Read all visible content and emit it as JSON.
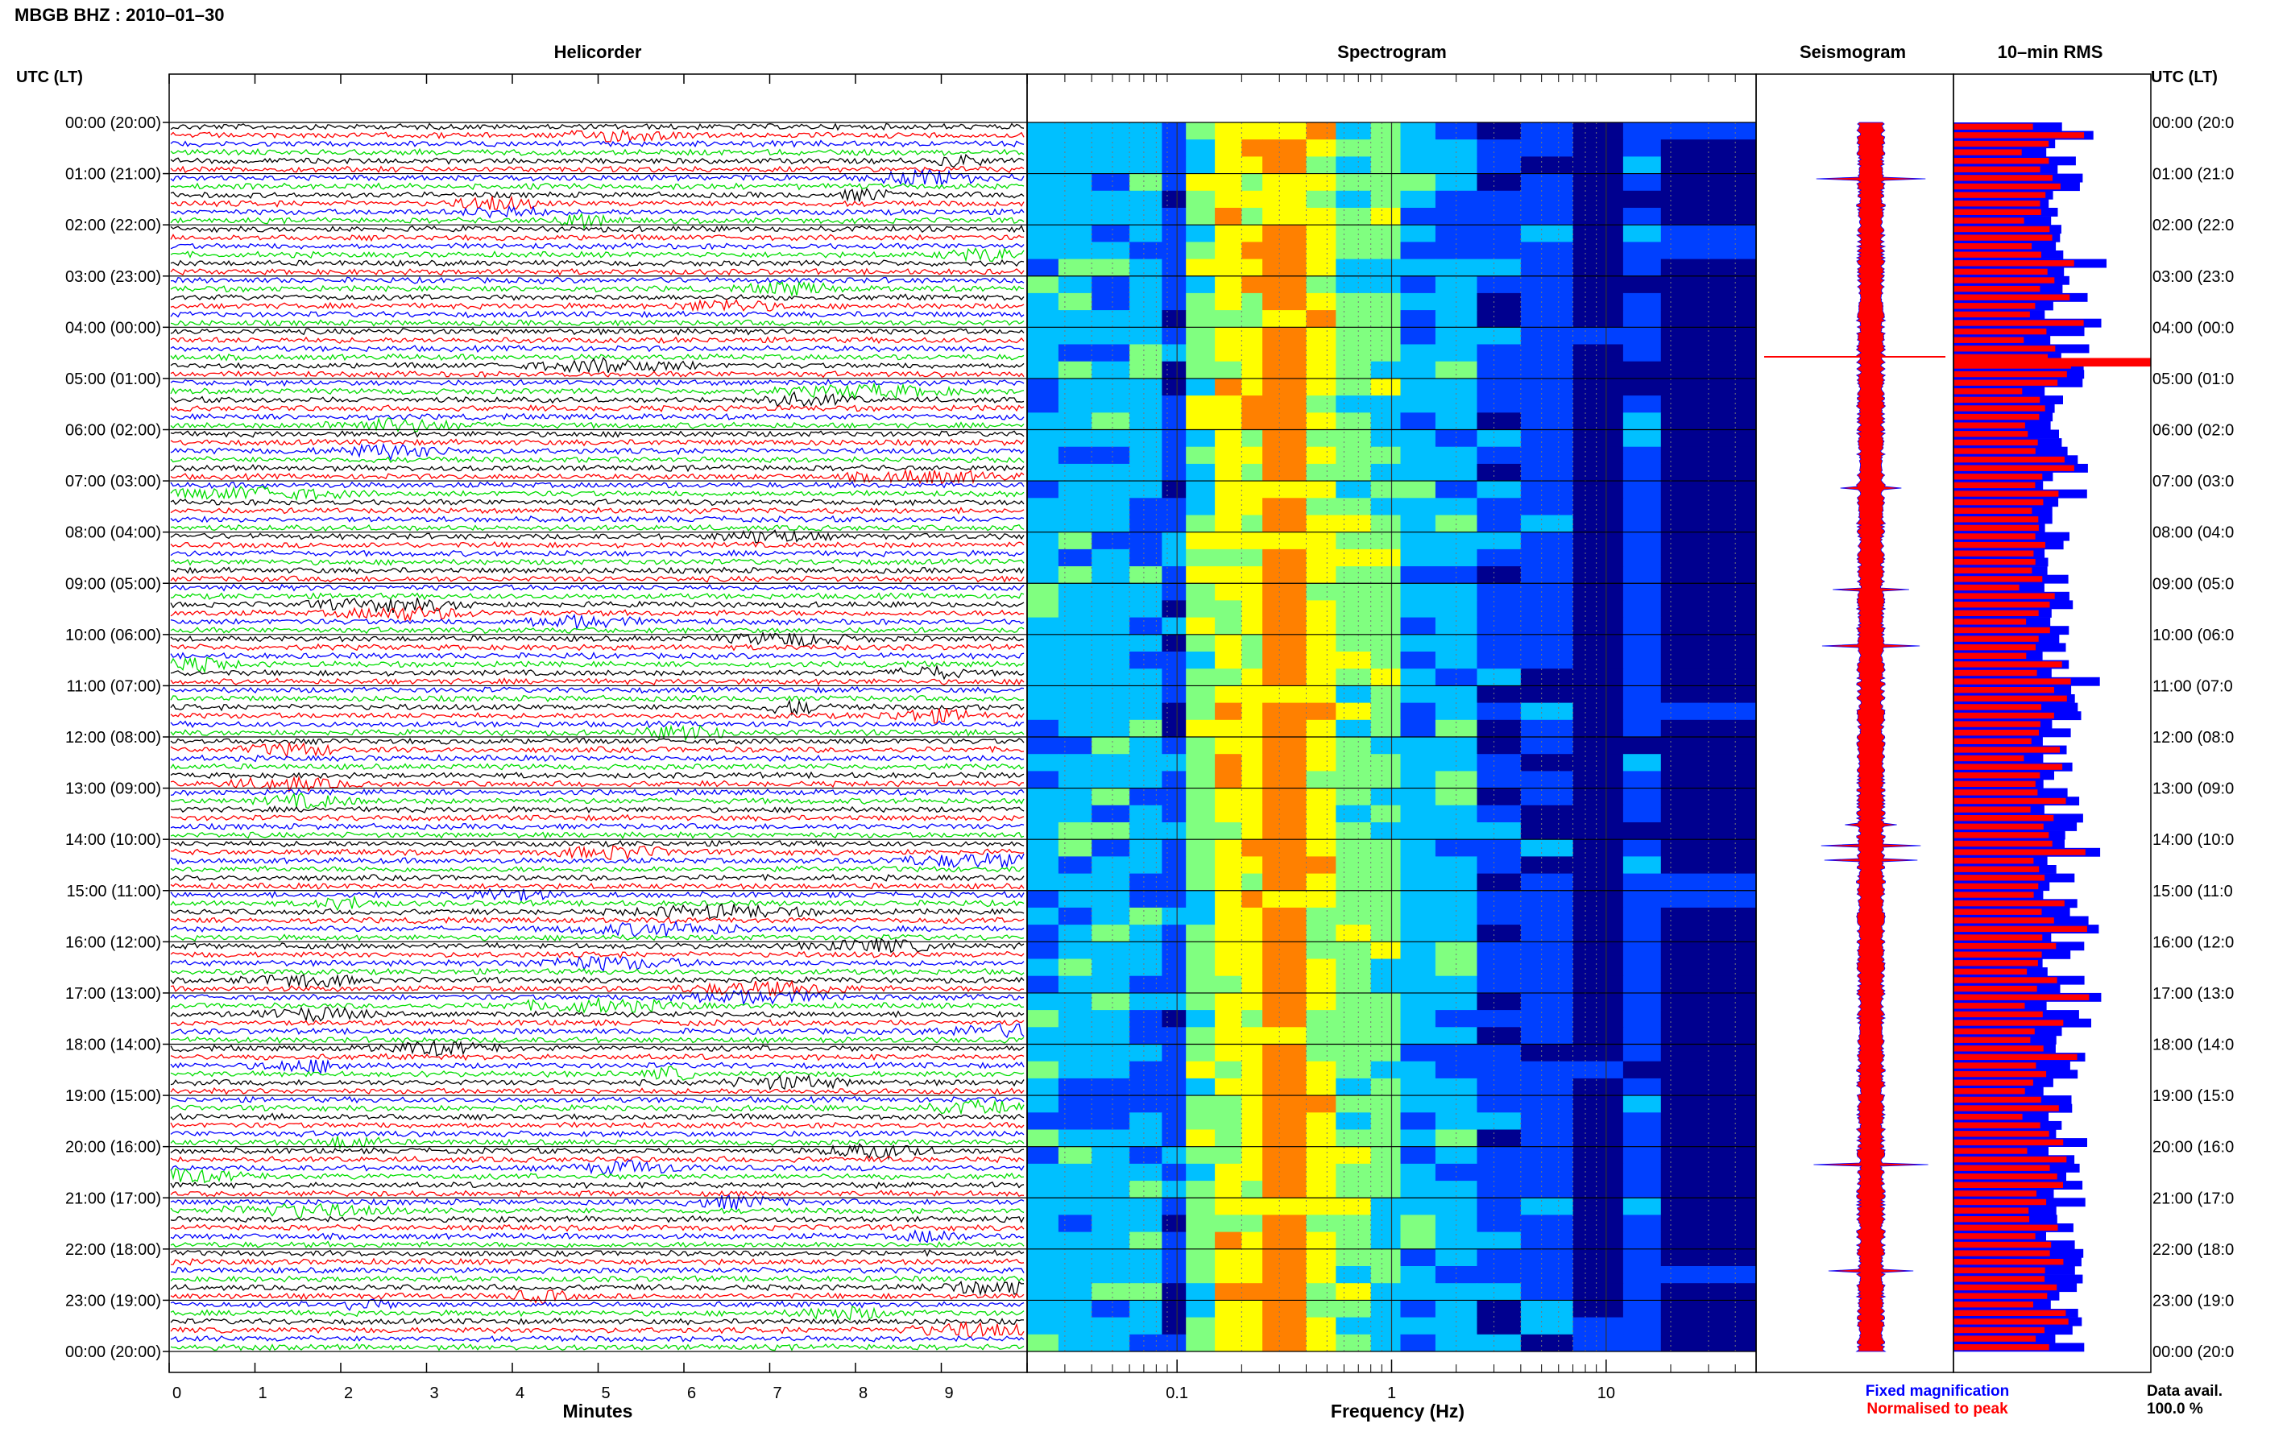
{
  "header": {
    "title": "MBGB BHZ : 2010–01–30"
  },
  "panels": {
    "helicorder": "Helicorder",
    "spectrogram": "Spectrogram",
    "seismogram": "Seismogram",
    "rms": "10–min RMS"
  },
  "axes": {
    "left_time_header": "UTC (LT)",
    "right_time_header": "UTC (LT)",
    "minutes_label": "Minutes",
    "frequency_label": "Frequency (Hz)",
    "time_labels": [
      "00:00 (20:00)",
      "01:00 (21:00)",
      "02:00 (22:00)",
      "03:00 (23:00)",
      "04:00 (00:00)",
      "05:00 (01:00)",
      "06:00 (02:00)",
      "07:00 (03:00)",
      "08:00 (04:00)",
      "09:00 (05:00)",
      "10:00 (06:00)",
      "11:00 (07:00)",
      "12:00 (08:00)",
      "13:00 (09:00)",
      "14:00 (10:00)",
      "15:00 (11:00)",
      "16:00 (12:00)",
      "17:00 (13:00)",
      "18:00 (14:00)",
      "19:00 (15:00)",
      "20:00 (16:00)",
      "21:00 (17:00)",
      "22:00 (18:00)",
      "23:00 (19:00)",
      "00:00 (20:00)"
    ],
    "right_time_labels": [
      "00:00 (20:0",
      "01:00 (21:0",
      "02:00 (22:0",
      "03:00 (23:0",
      "04:00 (00:0",
      "05:00 (01:0",
      "06:00 (02:0",
      "07:00 (03:0",
      "08:00 (04:0",
      "09:00 (05:0",
      "10:00 (06:0",
      "11:00 (07:0",
      "12:00 (08:0",
      "13:00 (09:0",
      "14:00 (10:0",
      "15:00 (11:0",
      "16:00 (12:0",
      "17:00 (13:0",
      "18:00 (14:0",
      "19:00 (15:0",
      "20:00 (16:0",
      "21:00 (17:0",
      "22:00 (18:0",
      "23:00 (19:0",
      "00:00 (20:0"
    ],
    "minute_ticks": [
      "0",
      "1",
      "2",
      "3",
      "4",
      "5",
      "6",
      "7",
      "8",
      "9"
    ],
    "frequency_ticks": [
      "0.1",
      "1",
      "10"
    ]
  },
  "legend": {
    "fixed": "Fixed magnification",
    "normalised": "Normalised to peak",
    "fixed_color": "#0000ff",
    "normalised_color": "#ff0000"
  },
  "availability": {
    "label": "Data avail.",
    "value": "100.0 %"
  },
  "colors": {
    "trace_cycle": [
      "#000000",
      "#ff0000",
      "#0000ff",
      "#00dd00"
    ],
    "spectrogram_scale": [
      "#00008f",
      "#0040ff",
      "#00c0ff",
      "#80ff80",
      "#ffff00",
      "#ff8000"
    ]
  },
  "chart_data": [
    {
      "type": "line",
      "title": "Helicorder",
      "xlabel": "Minutes",
      "xlim": [
        0,
        10
      ],
      "ylim_hours_utc": [
        0,
        24
      ],
      "lines_per_hour": 6,
      "minutes_per_line": 10
    },
    {
      "type": "heatmap",
      "title": "Spectrogram",
      "xlabel": "Frequency (Hz)",
      "xscale": "log",
      "xlim": [
        0.02,
        50
      ],
      "ylim_hours_utc": [
        0,
        24
      ],
      "dominant_band_hz": [
        0.2,
        0.4
      ]
    },
    {
      "type": "line",
      "title": "Seismogram",
      "ylim_hours_utc": [
        0,
        24
      ]
    },
    {
      "type": "bar",
      "title": "10–min RMS",
      "ylim_hours_utc": [
        0,
        24
      ],
      "intervals": 144
    }
  ]
}
